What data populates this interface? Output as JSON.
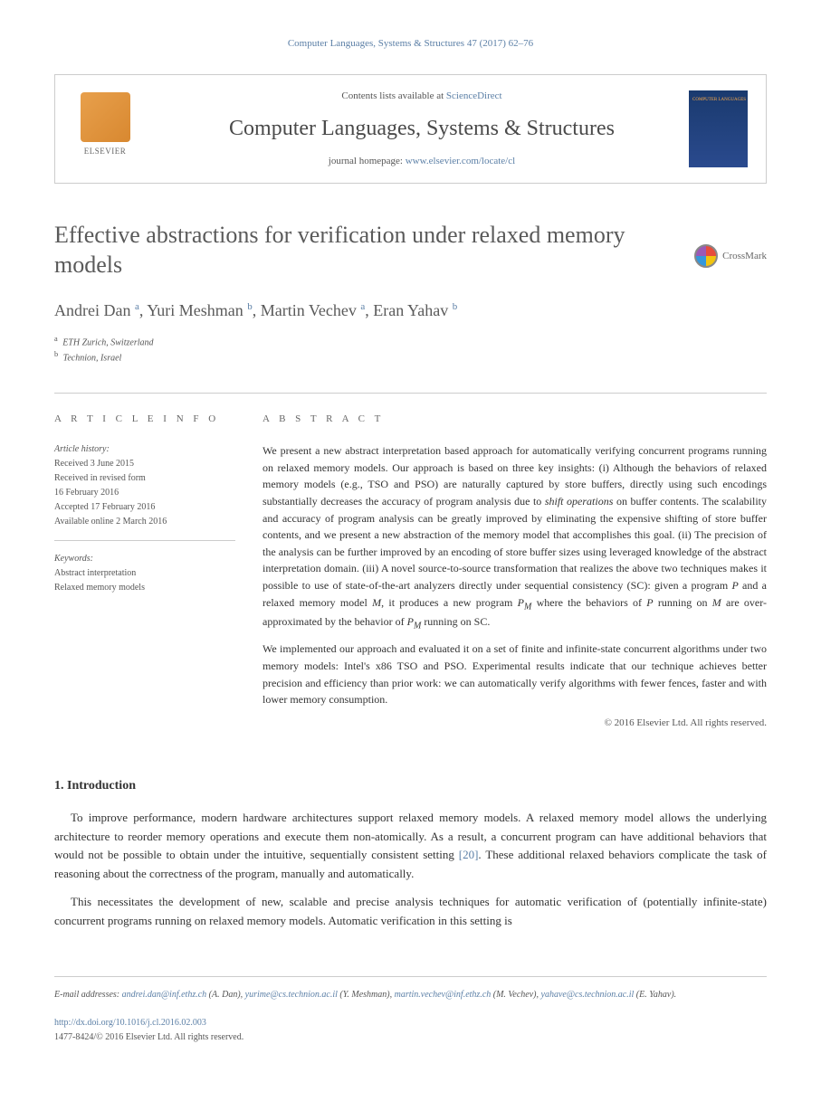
{
  "header": {
    "citation": "Computer Languages, Systems & Structures 47 (2017) 62–76"
  },
  "publisher": {
    "elsevier_label": "ELSEVIER",
    "contents_prefix": "Contents lists available at ",
    "contents_link": "ScienceDirect",
    "journal_name": "Computer Languages, Systems & Structures",
    "homepage_prefix": "journal homepage: ",
    "homepage_url": "www.elsevier.com/locate/cl"
  },
  "article": {
    "title": "Effective abstractions for verification under relaxed memory models",
    "crossmark_label": "CrossMark",
    "authors_html": "Andrei Dan <sup>a</sup>, Yuri Meshman <sup>b</sup>, Martin Vechev <sup>a</sup>, Eran Yahav <sup>b</sup>",
    "affiliations": [
      {
        "marker": "a",
        "text": "ETH Zurich, Switzerland"
      },
      {
        "marker": "b",
        "text": "Technion, Israel"
      }
    ]
  },
  "info": {
    "header_label": "A R T I C L E   I N F O",
    "history_label": "Article history:",
    "history_lines": [
      "Received 3 June 2015",
      "Received in revised form",
      "16 February 2016",
      "Accepted 17 February 2016",
      "Available online 2 March 2016"
    ],
    "keywords_label": "Keywords:",
    "keywords": [
      "Abstract interpretation",
      "Relaxed memory models"
    ]
  },
  "abstract": {
    "header_label": "A B S T R A C T",
    "para1": "We present a new abstract interpretation based approach for automatically verifying concurrent programs running on relaxed memory models. Our approach is based on three key insights: (i) Although the behaviors of relaxed memory models (e.g., TSO and PSO) are naturally captured by store buffers, directly using such encodings substantially decreases the accuracy of program analysis due to <em>shift operations</em> on buffer contents. The scalability and accuracy of program analysis can be greatly improved by eliminating the expensive shifting of store buffer contents, and we present a new abstraction of the memory model that accomplishes this goal. (ii) The precision of the analysis can be further improved by an encoding of store buffer sizes using leveraged knowledge of the abstract interpretation domain. (iii) A novel source-to-source transformation that realizes the above two techniques makes it possible to use of state-of-the-art analyzers directly under sequential consistency (SC): given a program <em>P</em> and a relaxed memory model <em>M</em>, it produces a new program <em>P<sub>M</sub></em> where the behaviors of <em>P</em> running on <em>M</em> are over-approximated by the behavior of <em>P<sub>M</sub></em> running on SC.",
    "para2": "We implemented our approach and evaluated it on a set of finite and infinite-state concurrent algorithms under two memory models: Intel's x86 TSO and PSO. Experimental results indicate that our technique achieves better precision and efficiency than prior work: we can automatically verify algorithms with fewer fences, faster and with lower memory consumption.",
    "copyright": "© 2016 Elsevier Ltd. All rights reserved."
  },
  "intro": {
    "heading": "1. Introduction",
    "para1": "To improve performance, modern hardware architectures support relaxed memory models. A relaxed memory model allows the underlying architecture to reorder memory operations and execute them non-atomically. As a result, a concurrent program can have additional behaviors that would not be possible to obtain under the intuitive, sequentially consistent setting <span class=\"citation-link\">[20]</span>. These additional relaxed behaviors complicate the task of reasoning about the correctness of the program, manually and automatically.",
    "para2": "This necessitates the development of new, scalable and precise analysis techniques for automatic verification of (potentially infinite-state) concurrent programs running on relaxed memory models. Automatic verification in this setting is"
  },
  "footer": {
    "emails_label": "E-mail addresses: ",
    "emails": [
      {
        "addr": "andrei.dan@inf.ethz.ch",
        "name": "(A. Dan)"
      },
      {
        "addr": "yurime@cs.technion.ac.il",
        "name": "(Y. Meshman)"
      },
      {
        "addr": "martin.vechev@inf.ethz.ch",
        "name": "(M. Vechev)"
      },
      {
        "addr": "yahave@cs.technion.ac.il",
        "name": "(E. Yahav)"
      }
    ],
    "doi": "http://dx.doi.org/10.1016/j.cl.2016.02.003",
    "issn_line": "1477-8424/© 2016 Elsevier Ltd. All rights reserved."
  },
  "colors": {
    "link": "#5b7fa6",
    "text": "#333333",
    "muted": "#555555",
    "border": "#cccccc"
  }
}
